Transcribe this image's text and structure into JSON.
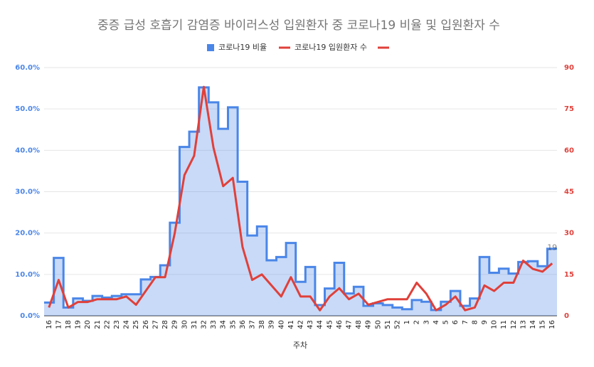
{
  "chart_data": {
    "type": "combo",
    "title": "중증 급성 호흡기 감염증 바이러스성 입원환자 중 코로나19 비율 및 입원환자 수",
    "x_label": "주차",
    "categories": [
      "16",
      "17",
      "18",
      "19",
      "20",
      "21",
      "22",
      "23",
      "24",
      "25",
      "26",
      "27",
      "28",
      "29",
      "30",
      "31",
      "32",
      "33",
      "34",
      "35",
      "36",
      "37",
      "38",
      "39",
      "40",
      "41",
      "42",
      "43",
      "44",
      "45",
      "46",
      "47",
      "48",
      "49",
      "50",
      "51",
      "52",
      "1",
      "2",
      "3",
      "4",
      "5",
      "6",
      "7",
      "8",
      "9",
      "10",
      "11",
      "12",
      "13",
      "14",
      "15",
      "16"
    ],
    "series": [
      {
        "name": "코로나19 비율",
        "type": "step_area",
        "color": "#4a86e8",
        "values": [
          3.2,
          14.0,
          2.0,
          4.2,
          3.6,
          4.8,
          4.4,
          4.8,
          5.2,
          5.2,
          8.8,
          9.4,
          12.2,
          22.5,
          40.8,
          44.5,
          55.2,
          51.6,
          45.2,
          50.4,
          32.4,
          19.4,
          21.6,
          13.4,
          14.2,
          17.6,
          8.2,
          11.8,
          2.6,
          6.6,
          12.8,
          5.4,
          7.0,
          2.4,
          3.0,
          2.6,
          2.0,
          1.6,
          3.8,
          3.4,
          1.4,
          3.4,
          6.0,
          2.4,
          4.2,
          14.2,
          10.4,
          11.4,
          10.2,
          13.0,
          13.2,
          12.0,
          16.2
        ]
      },
      {
        "name": "코로나19 입원환자 수",
        "type": "line",
        "color": "#e0403a",
        "axis": "y2",
        "values": [
          3,
          13,
          3,
          5,
          5,
          6,
          6,
          6,
          7,
          4,
          9,
          14,
          14,
          30,
          51,
          58,
          83,
          61,
          47,
          50,
          25,
          13,
          15,
          11,
          7,
          14,
          7,
          7,
          2,
          7,
          10,
          6,
          8,
          4,
          5,
          6,
          6,
          6,
          12,
          8,
          2,
          4,
          7,
          2,
          3,
          11,
          9,
          12,
          12,
          20,
          17,
          16,
          19
        ],
        "value_labels": [
          null,
          null,
          null,
          null,
          null,
          null,
          null,
          null,
          null,
          null,
          null,
          null,
          null,
          null,
          null,
          null,
          null,
          null,
          null,
          null,
          null,
          null,
          null,
          null,
          null,
          null,
          null,
          null,
          null,
          null,
          null,
          null,
          null,
          null,
          null,
          null,
          null,
          null,
          null,
          null,
          null,
          null,
          null,
          null,
          null,
          null,
          null,
          null,
          null,
          null,
          null,
          null,
          "19"
        ]
      }
    ],
    "ylim": [
      0,
      60
    ],
    "yticks": [
      {
        "value": 0,
        "label": "0.0%"
      },
      {
        "value": 10,
        "label": "10.0%"
      },
      {
        "value": 20,
        "label": "20.0%"
      },
      {
        "value": 30,
        "label": "30.0%"
      },
      {
        "value": 40,
        "label": "40.0%"
      },
      {
        "value": 50,
        "label": "50.0%"
      },
      {
        "value": 60,
        "label": "60.0%"
      }
    ],
    "y2lim": [
      0,
      90
    ],
    "y2ticks": [
      0,
      15,
      30,
      45,
      60,
      75,
      90
    ],
    "grid": true
  }
}
